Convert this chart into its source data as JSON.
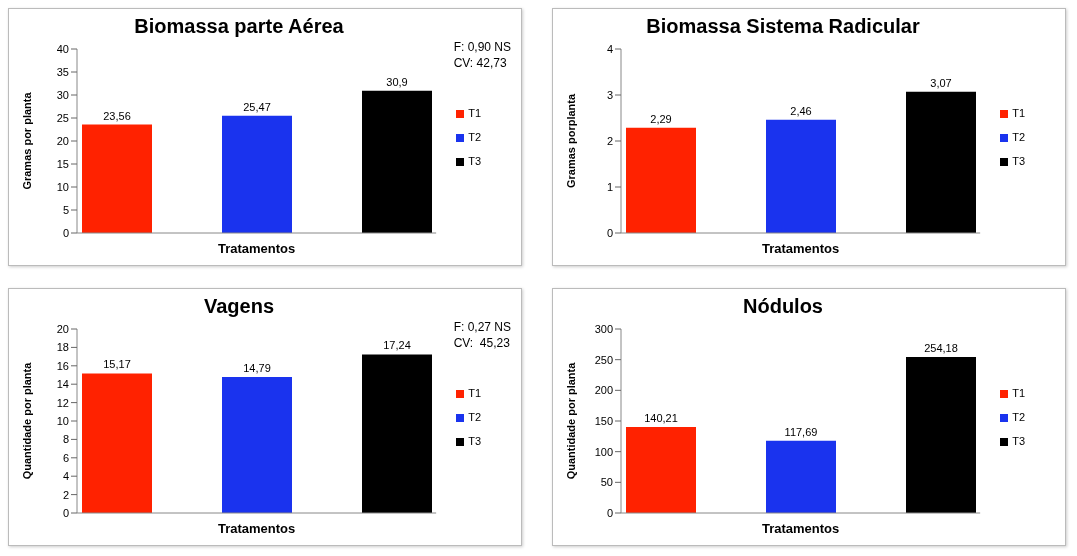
{
  "chart_data": [
    {
      "type": "bar",
      "title": "Biomassa parte Aérea",
      "xlabel": "Tratamentos",
      "ylabel": "Gramas por planta",
      "categories": [
        null
      ],
      "series": [
        {
          "name": "T1",
          "color": "#ff2200",
          "values": [
            23.56
          ],
          "value_labels": [
            "23,56"
          ]
        },
        {
          "name": "T2",
          "color": "#1a33ee",
          "values": [
            25.47
          ],
          "value_labels": [
            "25,47"
          ]
        },
        {
          "name": "T3",
          "color": "#000000",
          "values": [
            30.9
          ],
          "value_labels": [
            "30,9"
          ]
        }
      ],
      "ylim": [
        0,
        40
      ],
      "yticks": [
        0,
        5,
        10,
        15,
        20,
        25,
        30,
        35,
        40
      ],
      "grid": false,
      "legend": "right",
      "annotations": [
        "F: 0,90 NS",
        "CV: 42,73"
      ]
    },
    {
      "type": "bar",
      "title": "Biomassa Sistema Radicular",
      "xlabel": "Tratamentos",
      "ylabel": "Gramas porplanta",
      "categories": [
        null
      ],
      "series": [
        {
          "name": "T1",
          "color": "#ff2200",
          "values": [
            2.29
          ],
          "value_labels": [
            "2,29"
          ]
        },
        {
          "name": "T2",
          "color": "#1a33ee",
          "values": [
            2.46
          ],
          "value_labels": [
            "2,46"
          ]
        },
        {
          "name": "T3",
          "color": "#000000",
          "values": [
            3.07
          ],
          "value_labels": [
            "3,07"
          ]
        }
      ],
      "ylim": [
        0,
        4
      ],
      "yticks": [
        0,
        1,
        2,
        3,
        4
      ],
      "grid": false,
      "legend": "right"
    },
    {
      "type": "bar",
      "title": "Vagens",
      "xlabel": "Tratamentos",
      "ylabel": "Quantidade por planta",
      "categories": [
        null
      ],
      "series": [
        {
          "name": "T1",
          "color": "#ff2200",
          "values": [
            15.17
          ],
          "value_labels": [
            "15,17"
          ]
        },
        {
          "name": "T2",
          "color": "#1a33ee",
          "values": [
            14.79
          ],
          "value_labels": [
            "14,79"
          ]
        },
        {
          "name": "T3",
          "color": "#000000",
          "values": [
            17.24
          ],
          "value_labels": [
            "17,24"
          ]
        }
      ],
      "ylim": [
        0,
        20
      ],
      "yticks": [
        0,
        2,
        4,
        6,
        8,
        10,
        12,
        14,
        16,
        18,
        20
      ],
      "grid": false,
      "legend": "right",
      "annotations": [
        "F: 0,27 NS",
        "CV:  45,23"
      ]
    },
    {
      "type": "bar",
      "title": "Nódulos",
      "xlabel": "Tratamentos",
      "ylabel": "Quantidade por planta",
      "categories": [
        null
      ],
      "series": [
        {
          "name": "T1",
          "color": "#ff2200",
          "values": [
            140.21
          ],
          "value_labels": [
            "140,21"
          ]
        },
        {
          "name": "T2",
          "color": "#1a33ee",
          "values": [
            117.69
          ],
          "value_labels": [
            "117,69"
          ]
        },
        {
          "name": "T3",
          "color": "#000000",
          "values": [
            254.18
          ],
          "value_labels": [
            "254,18"
          ]
        }
      ],
      "ylim": [
        0,
        300
      ],
      "yticks": [
        0,
        50,
        100,
        150,
        200,
        250,
        300
      ],
      "grid": false,
      "legend": "right"
    }
  ]
}
